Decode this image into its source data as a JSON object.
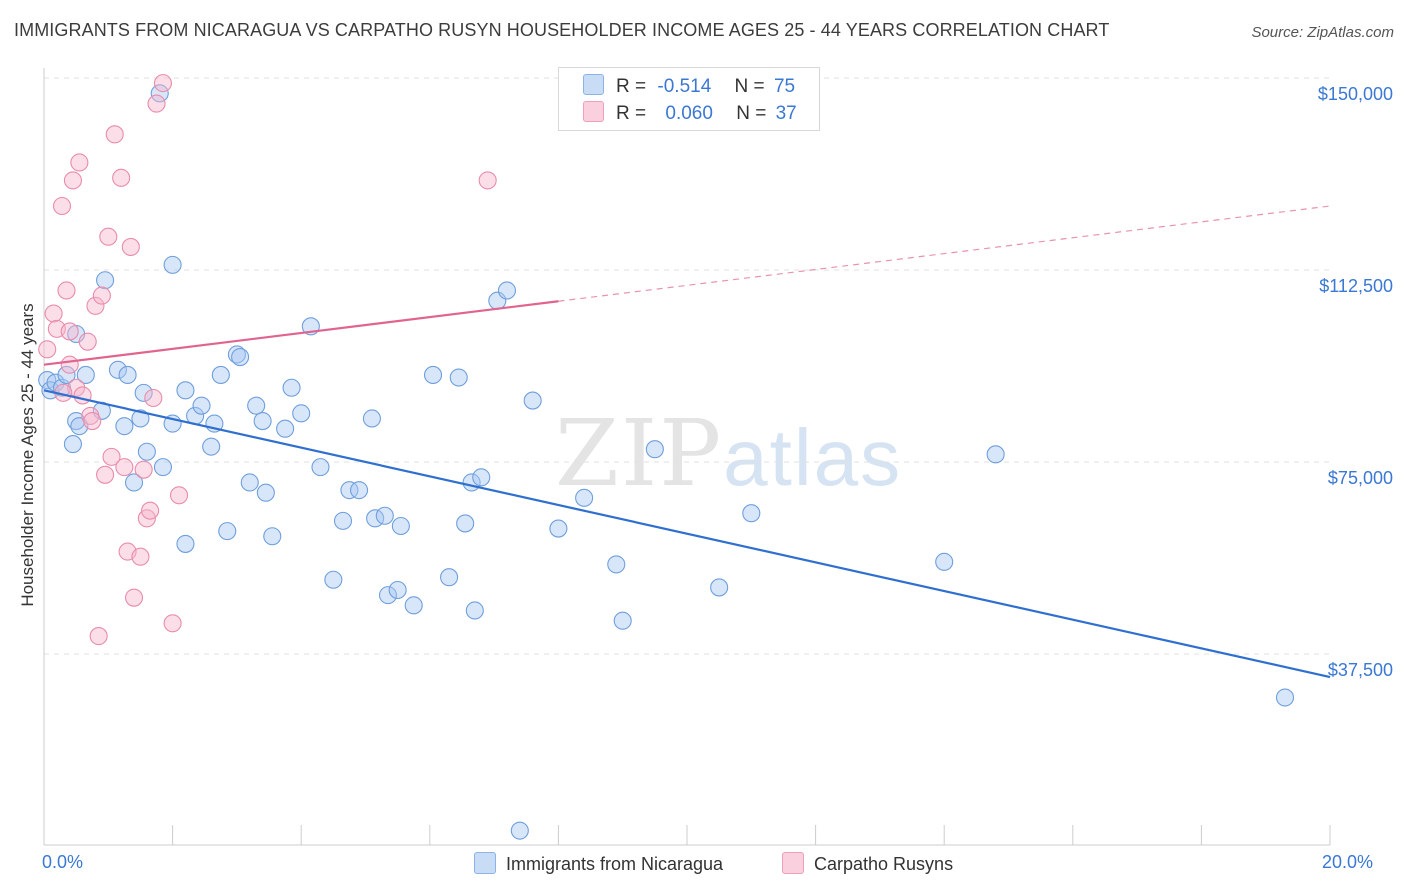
{
  "title": "IMMIGRANTS FROM NICARAGUA VS CARPATHO RUSYN HOUSEHOLDER INCOME AGES 25 - 44 YEARS CORRELATION CHART",
  "source": "Source: ZipAtlas.com",
  "watermark": {
    "zip": "ZIP",
    "atlas": "atlas"
  },
  "legend": {
    "rows": [
      {
        "r_label": "R =",
        "r_value": "-0.514",
        "n_label": "N =",
        "n_value": "75",
        "color": "#a9c8f2"
      },
      {
        "r_label": "R =",
        "r_value": "0.060",
        "n_label": "N =",
        "n_value": "37",
        "color": "#f6b6cb"
      }
    ]
  },
  "chart_data": {
    "type": "scatter",
    "title": "IMMIGRANTS FROM NICARAGUA VS CARPATHO RUSYN HOUSEHOLDER INCOME AGES 25 - 44 YEARS CORRELATION CHART",
    "xlabel": "",
    "ylabel": "Householder Income Ages 25 - 44 years",
    "xlim": [
      0,
      20
    ],
    "ylim": [
      0,
      155000
    ],
    "x_tick_labels": [
      "0.0%",
      "20.0%"
    ],
    "y_ticks": [
      37500,
      75000,
      112500,
      150000
    ],
    "y_tick_labels": [
      "$37,500",
      "$75,000",
      "$112,500",
      "$150,000"
    ],
    "grid": true,
    "legend_position": "top-center",
    "series": [
      {
        "name": "Immigrants from Nicaragua",
        "color": "#a9c8f2",
        "stroke": "#6f9fdc",
        "trend": {
          "x0": 0,
          "y0": 89000,
          "x1": 20,
          "y1": 33000,
          "color": "#2f6fcf"
        },
        "points": [
          [
            0.05,
            91000
          ],
          [
            0.1,
            89000
          ],
          [
            0.18,
            90500
          ],
          [
            0.28,
            89500
          ],
          [
            0.35,
            92000
          ],
          [
            0.45,
            78500
          ],
          [
            0.5,
            83000
          ],
          [
            0.55,
            82000
          ],
          [
            0.5,
            100000
          ],
          [
            0.95,
            110500
          ],
          [
            1.8,
            147000
          ],
          [
            2.0,
            113500
          ],
          [
            0.9,
            85000
          ],
          [
            1.15,
            93000
          ],
          [
            1.3,
            92000
          ],
          [
            1.25,
            82000
          ],
          [
            1.55,
            88500
          ],
          [
            1.6,
            77000
          ],
          [
            1.85,
            74000
          ],
          [
            1.5,
            83500
          ],
          [
            1.4,
            71000
          ],
          [
            2.0,
            82500
          ],
          [
            2.2,
            89000
          ],
          [
            2.35,
            84000
          ],
          [
            2.45,
            86000
          ],
          [
            2.6,
            78000
          ],
          [
            2.65,
            82500
          ],
          [
            2.75,
            92000
          ],
          [
            3.0,
            96000
          ],
          [
            3.05,
            95500
          ],
          [
            3.2,
            71000
          ],
          [
            3.3,
            86000
          ],
          [
            3.4,
            83000
          ],
          [
            3.45,
            69000
          ],
          [
            2.2,
            59000
          ],
          [
            2.85,
            61500
          ],
          [
            3.55,
            60500
          ],
          [
            3.75,
            81500
          ],
          [
            3.85,
            89500
          ],
          [
            4.0,
            84500
          ],
          [
            4.15,
            101500
          ],
          [
            4.3,
            74000
          ],
          [
            4.5,
            52000
          ],
          [
            4.65,
            63500
          ],
          [
            4.75,
            69500
          ],
          [
            4.9,
            69500
          ],
          [
            5.1,
            83500
          ],
          [
            5.15,
            64000
          ],
          [
            5.3,
            64500
          ],
          [
            5.35,
            49000
          ],
          [
            5.5,
            50000
          ],
          [
            5.55,
            62500
          ],
          [
            5.75,
            47000
          ],
          [
            6.05,
            92000
          ],
          [
            6.3,
            52500
          ],
          [
            6.45,
            91500
          ],
          [
            6.55,
            63000
          ],
          [
            6.65,
            71000
          ],
          [
            6.8,
            72000
          ],
          [
            6.7,
            46000
          ],
          [
            7.05,
            106500
          ],
          [
            7.2,
            108500
          ],
          [
            7.6,
            87000
          ],
          [
            8.0,
            62000
          ],
          [
            8.4,
            68000
          ],
          [
            8.9,
            55000
          ],
          [
            9.0,
            44000
          ],
          [
            9.5,
            77500
          ],
          [
            10.5,
            50500
          ],
          [
            11.0,
            65000
          ],
          [
            14.0,
            55500
          ],
          [
            14.8,
            76500
          ],
          [
            19.3,
            29000
          ],
          [
            7.4,
            3000
          ],
          [
            0.65,
            92000
          ]
        ]
      },
      {
        "name": "Carpatho Rusyns",
        "color": "#f6b6cb",
        "stroke": "#e98cab",
        "trend": {
          "x0": 0,
          "y0": 94000,
          "x1": 20,
          "y1": 125000,
          "solid_until_x": 8,
          "color": "#e0648f"
        },
        "points": [
          [
            0.05,
            97000
          ],
          [
            0.15,
            104000
          ],
          [
            0.2,
            101000
          ],
          [
            0.28,
            125000
          ],
          [
            0.35,
            108500
          ],
          [
            0.4,
            94000
          ],
          [
            0.45,
            130000
          ],
          [
            0.5,
            89500
          ],
          [
            0.55,
            133500
          ],
          [
            0.6,
            88000
          ],
          [
            0.68,
            98500
          ],
          [
            0.72,
            84000
          ],
          [
            0.75,
            83000
          ],
          [
            0.8,
            105500
          ],
          [
            0.9,
            107500
          ],
          [
            0.95,
            72500
          ],
          [
            1.0,
            119000
          ],
          [
            1.05,
            76000
          ],
          [
            1.1,
            139000
          ],
          [
            1.2,
            130500
          ],
          [
            1.25,
            74000
          ],
          [
            1.3,
            57500
          ],
          [
            1.35,
            117000
          ],
          [
            1.4,
            48500
          ],
          [
            1.5,
            56500
          ],
          [
            1.55,
            73500
          ],
          [
            1.6,
            64000
          ],
          [
            1.65,
            65500
          ],
          [
            1.7,
            87500
          ],
          [
            1.75,
            145000
          ],
          [
            1.85,
            149000
          ],
          [
            2.0,
            43500
          ],
          [
            2.1,
            68500
          ],
          [
            6.9,
            130000
          ],
          [
            0.4,
            100500
          ],
          [
            0.3,
            88500
          ],
          [
            0.85,
            41000
          ]
        ]
      }
    ]
  },
  "bottom_legend": [
    {
      "label": "Immigrants from Nicaragua",
      "color": "#a9c8f2"
    },
    {
      "label": "Carpatho Rusyns",
      "color": "#f6b6cb"
    }
  ]
}
